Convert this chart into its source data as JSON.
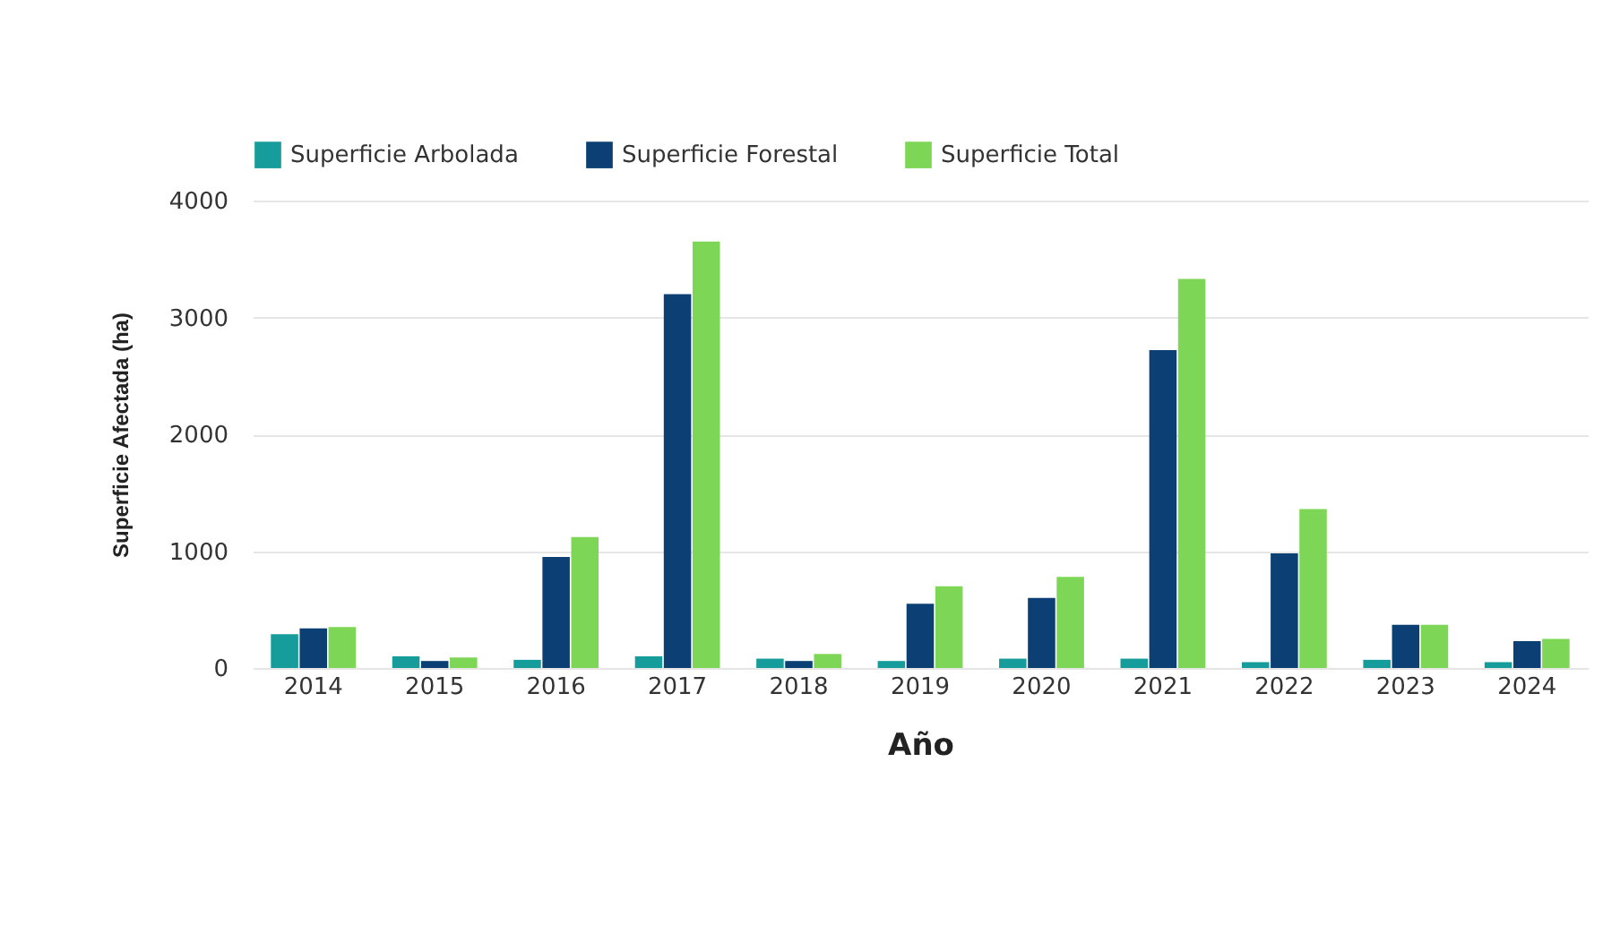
{
  "chart_data": {
    "type": "bar",
    "xlabel": "Año",
    "ylabel": "Superficie Afectada (ha)",
    "categories": [
      "2014",
      "2015",
      "2016",
      "2017",
      "2018",
      "2019",
      "2020",
      "2021",
      "2022",
      "2023",
      "2024"
    ],
    "series": [
      {
        "name": "Superficie Arbolada",
        "color": "#179c9c",
        "values": [
          290,
          100,
          70,
          100,
          80,
          60,
          80,
          80,
          50,
          70,
          50
        ]
      },
      {
        "name": "Superficie Forestal",
        "color": "#0c3f74",
        "values": [
          340,
          60,
          950,
          3200,
          60,
          550,
          600,
          2720,
          980,
          370,
          230
        ]
      },
      {
        "name": "Superficie Total",
        "color": "#7dd655",
        "values": [
          350,
          90,
          1120,
          3650,
          120,
          700,
          780,
          3330,
          1360,
          370,
          250
        ]
      }
    ],
    "ylim": [
      0,
      4000
    ],
    "yticks": [
      0,
      1000,
      2000,
      3000,
      4000
    ],
    "grid": "y",
    "legend": "top"
  }
}
